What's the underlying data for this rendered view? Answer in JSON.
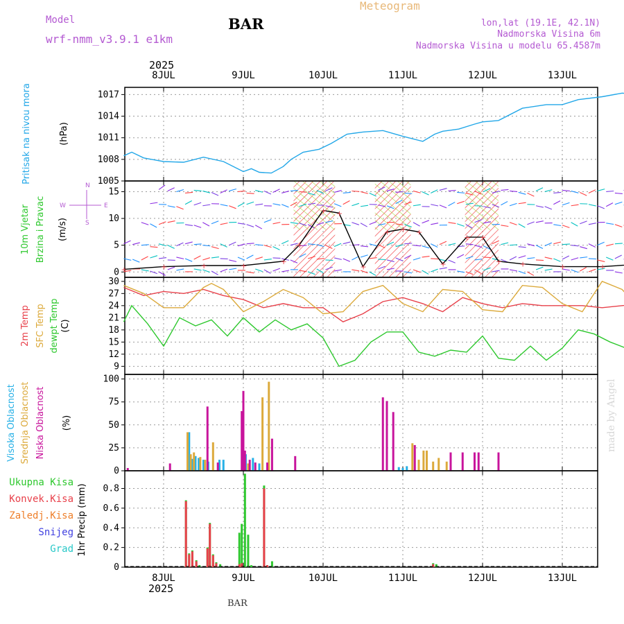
{
  "header": {
    "model_label": "Model",
    "model_name": "wrf-nmm_v3.9.1 e1km",
    "title": "BAR",
    "subtitle": "Meteogram",
    "coords": "lon,lat (19.1E, 42.1N)",
    "elevation": "Nadmorska Visina 6m",
    "model_elevation": "Nadmorska Visina u modelu 65.4587m"
  },
  "footer": {
    "station": "BAR"
  },
  "watermark": "made by Angel",
  "colors": {
    "pressure": "#22a7e8",
    "temp2m": "#e8404a",
    "sfc_temp": "#dcaa3c",
    "dewpt": "#2ec82e",
    "high_cloud": "#26b0e6",
    "mid_cloud": "#dcaa3c",
    "low_cloud": "#c8149c",
    "precip_total": "#2ec82e",
    "precip_conv": "#e8404a",
    "precip_frz": "#ee7f2a",
    "snow": "#4040e0",
    "hail": "#28c8c8"
  },
  "time_axis": {
    "year": "2025",
    "days": [
      "8JUL",
      "9JUL",
      "10JUL",
      "11JUL",
      "12JUL",
      "13JUL"
    ]
  },
  "chart_data": [
    {
      "type": "line",
      "panel": "pressure",
      "ylabel": [
        "Pritisak na nivou mora",
        "(hPa)"
      ],
      "ylim": [
        1005,
        1018
      ],
      "yticks": [
        1005,
        1008,
        1011,
        1014,
        1017
      ],
      "series": [
        {
          "name": "Pritisak na nivou mora",
          "color_key": "pressure",
          "x": [
            -0.5,
            -0.4,
            -0.25,
            -0.1,
            0,
            0.25,
            0.5,
            0.75,
            1,
            1.1,
            1.2,
            1.35,
            1.5,
            1.6,
            1.75,
            1.95,
            2.1,
            2.3,
            2.5,
            2.75,
            3,
            3.25,
            3.4,
            3.5,
            3.7,
            3.9,
            4,
            4.2,
            4.5,
            4.8,
            5,
            5.2,
            5.5,
            5.75,
            6,
            6.15,
            6.2
          ],
          "y": [
            1008.5,
            1009.0,
            1008.2,
            1007.9,
            1007.7,
            1007.6,
            1008.3,
            1007.7,
            1006.3,
            1006.7,
            1006.2,
            1006.1,
            1007.0,
            1008.0,
            1009.0,
            1009.4,
            1010.2,
            1011.5,
            1011.8,
            1012.0,
            1011.2,
            1010.5,
            1011.5,
            1011.9,
            1012.2,
            1012.9,
            1013.2,
            1013.4,
            1015.1,
            1015.6,
            1015.6,
            1016.3,
            1016.7,
            1017.2,
            1016.9,
            1017.2,
            1017.0
          ]
        }
      ]
    },
    {
      "type": "line",
      "panel": "wind",
      "ylabel": [
        "10m Vjetar",
        "Brzina i Pravac",
        "(m/s)"
      ],
      "compass": {
        "n": "N",
        "s": "S",
        "e": "E",
        "w": "W"
      },
      "ylim": [
        -1,
        17
      ],
      "yticks": [
        0,
        5,
        10,
        15
      ],
      "hatched_periods": [
        [
          1.63,
          2.15
        ],
        [
          2.65,
          3.1
        ],
        [
          3.78,
          4.2
        ]
      ],
      "series": [
        {
          "name": "wind speed",
          "color": "#000000",
          "x": [
            -0.5,
            0,
            0.5,
            1,
            1.5,
            1.7,
            2,
            2.2,
            2.5,
            2.8,
            3.0,
            3.2,
            3.5,
            3.8,
            4.0,
            4.2,
            4.5,
            5,
            5.5,
            6,
            6.2
          ],
          "y": [
            0.5,
            1.0,
            1.2,
            1.2,
            2.0,
            5.0,
            11.5,
            11.0,
            1.0,
            7.5,
            8.0,
            7.5,
            1.5,
            6.5,
            6.5,
            2.0,
            1.5,
            1.0,
            1.0,
            1.5,
            1.5
          ]
        }
      ]
    },
    {
      "type": "line",
      "panel": "temperature",
      "ylabel": [
        "2m Temp",
        "SFC Temp",
        "dewpt Temp",
        "(C)"
      ],
      "ylim": [
        7,
        31
      ],
      "yticks": [
        9,
        12,
        15,
        18,
        21,
        24,
        27,
        30
      ],
      "series": [
        {
          "name": "2m Temp",
          "color_key": "temp2m",
          "x": [
            -0.5,
            -0.25,
            0,
            0.25,
            0.5,
            0.75,
            1,
            1.25,
            1.5,
            1.75,
            2,
            2.25,
            2.5,
            2.75,
            3,
            3.25,
            3.5,
            3.75,
            4,
            4.25,
            4.5,
            4.75,
            5,
            5.25,
            5.5,
            5.75,
            6,
            6.2
          ],
          "y": [
            28.5,
            26.5,
            27.5,
            27.0,
            28.0,
            26.5,
            25.5,
            23.5,
            24.5,
            23.5,
            23.5,
            20.0,
            22.0,
            25.0,
            26.0,
            24.5,
            22.5,
            26.0,
            24.5,
            23.5,
            24.5,
            24.0,
            24.0,
            24.0,
            23.5,
            24.0,
            24.5,
            25.5
          ]
        },
        {
          "name": "SFC Temp",
          "color_key": "sfc_temp",
          "x": [
            -0.5,
            -0.25,
            0,
            0.25,
            0.5,
            0.6,
            0.75,
            1,
            1.25,
            1.5,
            1.75,
            2,
            2.25,
            2.5,
            2.75,
            3,
            3.25,
            3.5,
            3.75,
            4,
            4.25,
            4.5,
            4.75,
            5,
            5.25,
            5.5,
            5.75,
            6,
            6.2
          ],
          "y": [
            29.0,
            27.0,
            23.5,
            23.5,
            28.5,
            29.5,
            28.0,
            22.5,
            25.0,
            28.0,
            26.0,
            22.0,
            22.5,
            27.5,
            29.0,
            24.5,
            22.5,
            28.0,
            27.5,
            23.0,
            22.5,
            29.0,
            28.5,
            24.5,
            22.5,
            30.0,
            28.0,
            22.5,
            30.5
          ]
        },
        {
          "name": "dewpt Temp",
          "color_key": "dewpt",
          "x": [
            -0.5,
            -0.4,
            -0.2,
            0,
            0.2,
            0.4,
            0.6,
            0.8,
            1,
            1.2,
            1.4,
            1.6,
            1.8,
            2,
            2.2,
            2.4,
            2.6,
            2.8,
            3,
            3.2,
            3.4,
            3.6,
            3.8,
            4,
            4.2,
            4.4,
            4.6,
            4.8,
            5,
            5.2,
            5.4,
            5.6,
            5.8,
            6,
            6.2
          ],
          "y": [
            20.0,
            24.0,
            19.5,
            14.0,
            21.0,
            19.0,
            20.5,
            16.5,
            21.0,
            17.5,
            20.5,
            18.0,
            19.5,
            16.0,
            9.0,
            10.5,
            15.0,
            17.5,
            17.5,
            12.5,
            11.5,
            13.0,
            12.5,
            16.5,
            11.0,
            10.5,
            14.0,
            10.5,
            13.5,
            18.0,
            17.0,
            15.0,
            13.5,
            15.0,
            17.5
          ]
        }
      ]
    },
    {
      "type": "bar",
      "panel": "clouds",
      "ylabel": [
        "Visoka Oblacnost",
        "Srednja Oblacnost",
        "Niska Oblacnost",
        "(%)"
      ],
      "ylim": [
        0,
        105
      ],
      "yticks": [
        0,
        25,
        50,
        75,
        100
      ],
      "series": [
        {
          "name": "Visoka Oblacnost",
          "color_key": "high_cloud",
          "x": [
            0.32,
            0.36,
            0.4,
            0.44,
            0.5,
            0.56,
            0.7,
            0.75,
            1.0,
            1.03,
            1.12,
            1.2,
            2.95,
            3.0,
            3.05
          ],
          "y": [
            42,
            13,
            16,
            14,
            12,
            10,
            12,
            12,
            15,
            18,
            14,
            8,
            4,
            3,
            5
          ]
        },
        {
          "name": "Srednja Oblacnost",
          "color_key": "mid_cloud",
          "x": [
            0.3,
            0.34,
            0.38,
            0.46,
            0.52,
            0.62,
            1.06,
            1.24,
            1.32,
            3.12,
            3.2,
            3.26,
            3.3,
            3.38,
            3.45,
            3.55
          ],
          "y": [
            42,
            18,
            20,
            15,
            12,
            31,
            8,
            80,
            97,
            30,
            12,
            22,
            22,
            10,
            14,
            10
          ]
        },
        {
          "name": "Niska Oblacnost",
          "color_key": "low_cloud",
          "x": [
            -0.45,
            0.08,
            0.55,
            0.68,
            0.98,
            1.0,
            1.02,
            1.08,
            1.15,
            1.3,
            1.36,
            1.65,
            2.75,
            2.8,
            2.88,
            3.15,
            3.6,
            3.75,
            3.9,
            3.95,
            4.2
          ],
          "y": [
            3,
            8,
            70,
            9,
            65,
            87,
            22,
            12,
            9,
            9,
            35,
            16,
            80,
            76,
            64,
            28,
            20,
            20,
            20,
            20,
            20
          ]
        }
      ]
    },
    {
      "type": "bar",
      "panel": "precip",
      "ylabel": [
        "1hr Precip (mm)"
      ],
      "legend": [
        "Ukupna Kisa",
        "Konvek.Kisa",
        "Zaledj.Kisa",
        "Snijeg",
        "Grad"
      ],
      "ylim": [
        0,
        0.98
      ],
      "yticks": [
        0,
        0.2,
        0.4,
        0.6,
        0.8
      ],
      "series": [
        {
          "name": "Ukupna Kisa",
          "color_key": "precip_total",
          "x": [
            0.28,
            0.32,
            0.36,
            0.41,
            0.45,
            0.55,
            0.58,
            0.62,
            0.66,
            0.71,
            0.95,
            0.98,
            1.02,
            1.06,
            1.1,
            1.26,
            1.3,
            1.36,
            3.38,
            3.42
          ],
          "y": [
            0.68,
            0.14,
            0.17,
            0.07,
            0.02,
            0.2,
            0.45,
            0.13,
            0.05,
            0.03,
            0.35,
            0.44,
            0.95,
            0.33,
            0.02,
            0.83,
            0.02,
            0.06,
            0.04,
            0.03
          ]
        },
        {
          "name": "Konvek.Kisa",
          "color_key": "precip_conv",
          "x": [
            0.28,
            0.32,
            0.36,
            0.41,
            0.55,
            0.58,
            0.62,
            0.66,
            0.95,
            0.98,
            1.26,
            1.3,
            3.38
          ],
          "y": [
            0.67,
            0.13,
            0.16,
            0.06,
            0.19,
            0.44,
            0.12,
            0.04,
            0.03,
            0.04,
            0.8,
            0.02,
            0.03
          ]
        }
      ]
    }
  ]
}
